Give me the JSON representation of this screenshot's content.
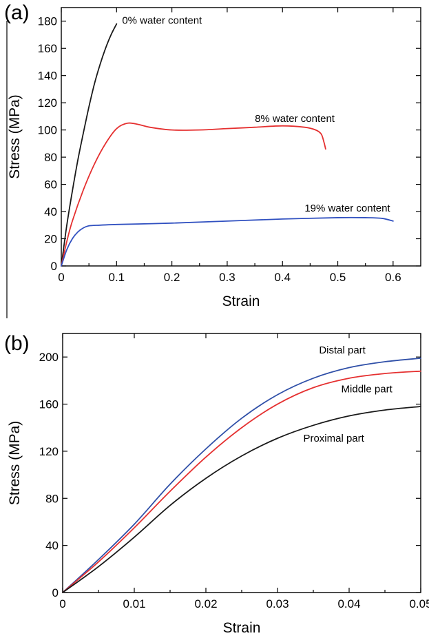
{
  "chart_data": [
    {
      "panel_label": "(a)",
      "type": "line",
      "xlabel": "Strain",
      "ylabel": "Stress (MPa)",
      "xlim": [
        0,
        0.65
      ],
      "ylim": [
        0,
        190
      ],
      "x_ticks": [
        0,
        0.1,
        0.2,
        0.3,
        0.4,
        0.5,
        0.6
      ],
      "x_tick_labels": [
        "0",
        "0.1",
        "0.2",
        "0.3",
        "0.4",
        "0.5",
        "0.6"
      ],
      "y_ticks": [
        0,
        20,
        40,
        60,
        80,
        100,
        120,
        140,
        160,
        180
      ],
      "y_tick_labels": [
        "0",
        "20",
        "40",
        "60",
        "80",
        "100",
        "120",
        "140",
        "160",
        "180"
      ],
      "grid": false,
      "series": [
        {
          "name": "0% water content",
          "color": "#1a1a1a",
          "x": [
            0,
            0.01,
            0.02,
            0.03,
            0.04,
            0.05,
            0.06,
            0.07,
            0.08,
            0.09,
            0.1
          ],
          "y": [
            0,
            30,
            55,
            78,
            98,
            117,
            134,
            148,
            160,
            170,
            178
          ]
        },
        {
          "name": "8% water content",
          "color": "#e53030",
          "x": [
            0,
            0.01,
            0.02,
            0.04,
            0.06,
            0.08,
            0.1,
            0.12,
            0.14,
            0.16,
            0.2,
            0.25,
            0.3,
            0.35,
            0.4,
            0.44,
            0.46,
            0.47,
            0.475,
            0.478
          ],
          "y": [
            0,
            18,
            33,
            56,
            75,
            90,
            101,
            105,
            104,
            102,
            100,
            100,
            101,
            102,
            103,
            102,
            100,
            97,
            91,
            86
          ]
        },
        {
          "name": "19% water content",
          "color": "#3050c0",
          "x": [
            0,
            0.01,
            0.02,
            0.03,
            0.04,
            0.05,
            0.07,
            0.1,
            0.2,
            0.3,
            0.4,
            0.5,
            0.55,
            0.58,
            0.6
          ],
          "y": [
            0,
            12,
            20,
            25,
            28,
            29.5,
            30,
            30.5,
            31.5,
            33,
            34.5,
            35.5,
            35.5,
            35,
            33
          ]
        }
      ],
      "annotations": [
        {
          "text": "0% water content",
          "x": 0.11,
          "y": 178
        },
        {
          "text": "8% water content",
          "x": 0.35,
          "y": 106
        },
        {
          "text": "19% water content",
          "x": 0.44,
          "y": 40
        }
      ]
    },
    {
      "panel_label": "(b)",
      "type": "line",
      "xlabel": "Strain",
      "ylabel": "Stress (MPa)",
      "xlim": [
        0,
        0.05
      ],
      "ylim": [
        0,
        220
      ],
      "x_ticks": [
        0,
        0.01,
        0.02,
        0.03,
        0.04,
        0.05
      ],
      "x_tick_labels": [
        "0",
        "0.01",
        "0.02",
        "0.03",
        "0.04",
        "0.05"
      ],
      "y_ticks": [
        0,
        40,
        80,
        120,
        160,
        200
      ],
      "y_tick_labels": [
        "0",
        "40",
        "80",
        "120",
        "160",
        "200"
      ],
      "grid": false,
      "series": [
        {
          "name": "Distal part",
          "color": "#3050a8",
          "x": [
            0,
            0.005,
            0.01,
            0.015,
            0.02,
            0.025,
            0.03,
            0.035,
            0.04,
            0.045,
            0.05
          ],
          "y": [
            0,
            28,
            58,
            92,
            122,
            148,
            168,
            182,
            191,
            196,
            199
          ]
        },
        {
          "name": "Middle part",
          "color": "#e53030",
          "x": [
            0,
            0.005,
            0.01,
            0.015,
            0.02,
            0.025,
            0.03,
            0.035,
            0.04,
            0.045,
            0.05
          ],
          "y": [
            0,
            26,
            55,
            86,
            115,
            140,
            160,
            174,
            182,
            186,
            188
          ]
        },
        {
          "name": "Proximal part",
          "color": "#1a1a1a",
          "x": [
            0,
            0.005,
            0.01,
            0.015,
            0.02,
            0.025,
            0.03,
            0.035,
            0.04,
            0.045,
            0.05
          ],
          "y": [
            0,
            22,
            47,
            74,
            97,
            116,
            131,
            142,
            150,
            155,
            158
          ]
        }
      ],
      "annotations": [
        {
          "text": "Distal part",
          "x": 0.0358,
          "y": 203
        },
        {
          "text": "Middle part",
          "x": 0.0389,
          "y": 170
        },
        {
          "text": "Proximal part",
          "x": 0.0336,
          "y": 128
        }
      ]
    }
  ]
}
